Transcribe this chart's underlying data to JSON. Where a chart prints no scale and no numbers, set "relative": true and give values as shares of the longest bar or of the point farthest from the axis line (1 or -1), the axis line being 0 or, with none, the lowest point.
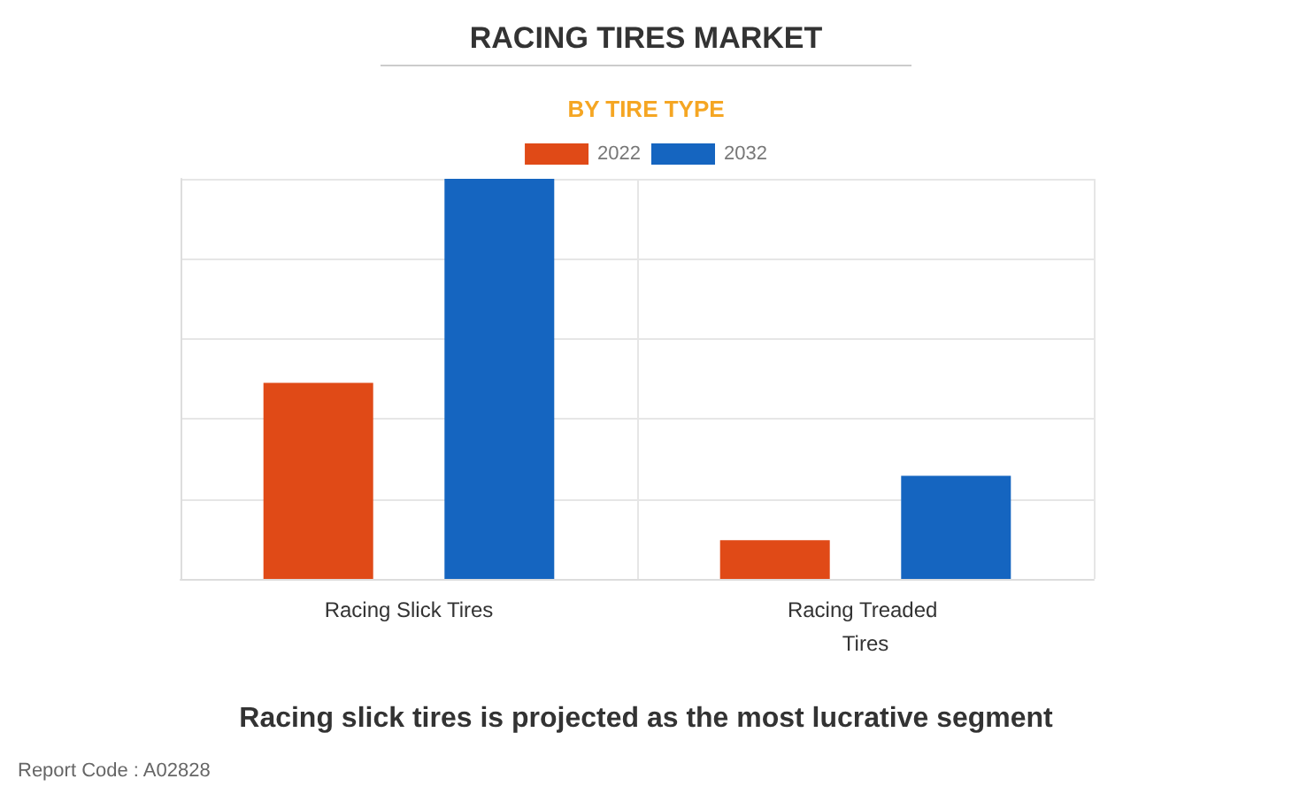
{
  "chart_data": {
    "type": "bar",
    "title": "RACING TIRES MARKET",
    "subtitle": "BY TIRE TYPE",
    "categories": [
      "Racing Slick Tires",
      "Racing Treaded Tires"
    ],
    "series": [
      {
        "name": "2022",
        "color": "#e04a17",
        "values": [
          0.49,
          0.097
        ]
      },
      {
        "name": "2032",
        "color": "#1565c0",
        "values": [
          1,
          0.258
        ]
      }
    ],
    "relative": true,
    "grid": true,
    "legend": "top",
    "annotations": [
      "Racing slick tires is projected as the most lucrative segment",
      "Report Code : A02828"
    ]
  }
}
